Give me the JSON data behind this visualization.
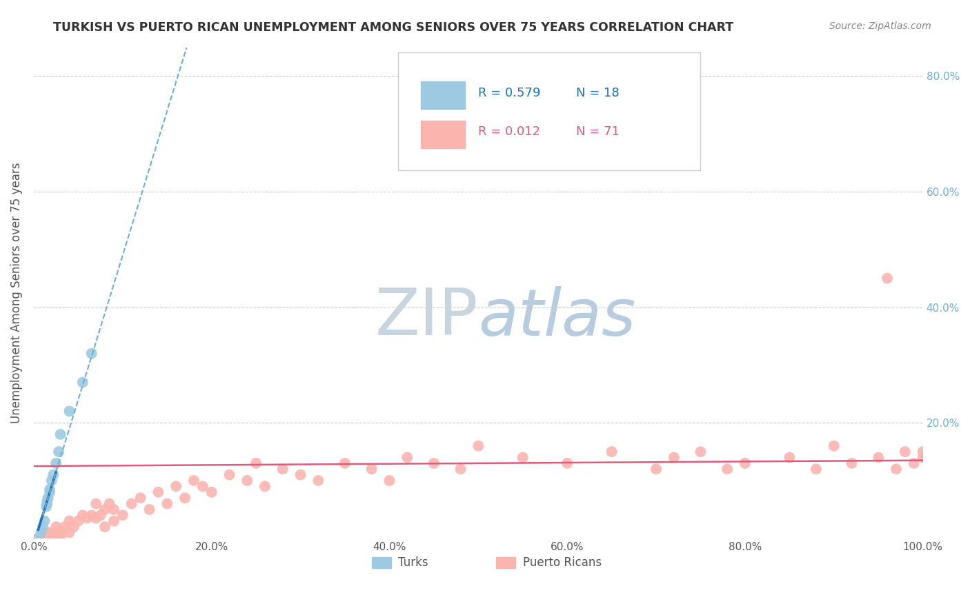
{
  "title": "TURKISH VS PUERTO RICAN UNEMPLOYMENT AMONG SENIORS OVER 75 YEARS CORRELATION CHART",
  "source": "Source: ZipAtlas.com",
  "ylabel": "Unemployment Among Seniors over 75 years",
  "turks_x": [
    0.005,
    0.008,
    0.01,
    0.012,
    0.014,
    0.015,
    0.015,
    0.016,
    0.018,
    0.018,
    0.02,
    0.022,
    0.025,
    0.028,
    0.03,
    0.04,
    0.055,
    0.065
  ],
  "turks_y": [
    0.0,
    0.01,
    0.02,
    0.03,
    0.055,
    0.06,
    0.065,
    0.07,
    0.08,
    0.085,
    0.1,
    0.11,
    0.13,
    0.15,
    0.18,
    0.22,
    0.27,
    0.32
  ],
  "pr_x": [
    0.005,
    0.008,
    0.01,
    0.012,
    0.015,
    0.018,
    0.02,
    0.025,
    0.025,
    0.03,
    0.03,
    0.035,
    0.04,
    0.04,
    0.045,
    0.05,
    0.055,
    0.06,
    0.065,
    0.07,
    0.07,
    0.075,
    0.08,
    0.08,
    0.085,
    0.09,
    0.09,
    0.1,
    0.11,
    0.12,
    0.13,
    0.14,
    0.15,
    0.16,
    0.17,
    0.18,
    0.19,
    0.2,
    0.22,
    0.24,
    0.25,
    0.26,
    0.28,
    0.3,
    0.32,
    0.35,
    0.38,
    0.4,
    0.42,
    0.45,
    0.48,
    0.5,
    0.55,
    0.6,
    0.65,
    0.7,
    0.72,
    0.75,
    0.78,
    0.8,
    0.85,
    0.88,
    0.9,
    0.92,
    0.95,
    0.96,
    0.97,
    0.98,
    0.99,
    1.0,
    1.0
  ],
  "pr_y": [
    0.0,
    0.0,
    0.01,
    0.0,
    0.01,
    0.01,
    0.0,
    0.01,
    0.02,
    0.005,
    0.01,
    0.02,
    0.01,
    0.03,
    0.02,
    0.03,
    0.04,
    0.035,
    0.04,
    0.035,
    0.06,
    0.04,
    0.05,
    0.02,
    0.06,
    0.05,
    0.03,
    0.04,
    0.06,
    0.07,
    0.05,
    0.08,
    0.06,
    0.09,
    0.07,
    0.1,
    0.09,
    0.08,
    0.11,
    0.1,
    0.13,
    0.09,
    0.12,
    0.11,
    0.1,
    0.13,
    0.12,
    0.1,
    0.14,
    0.13,
    0.12,
    0.16,
    0.14,
    0.13,
    0.15,
    0.12,
    0.14,
    0.15,
    0.12,
    0.13,
    0.14,
    0.12,
    0.16,
    0.13,
    0.14,
    0.45,
    0.12,
    0.15,
    0.13,
    0.15,
    0.14
  ],
  "turks_scatter_color": "#9ecae1",
  "pr_scatter_color": "#fbb4ae",
  "turks_line_color": "#2171b5",
  "turks_dash_color": "#6baed6",
  "pr_line_color": "#e05a7a",
  "turks_R": 0.579,
  "turks_N": 18,
  "pr_R": 0.012,
  "pr_N": 71,
  "xlim": [
    0.0,
    1.0
  ],
  "ylim": [
    0.0,
    0.85
  ],
  "xticks": [
    0.0,
    0.2,
    0.4,
    0.6,
    0.8,
    1.0
  ],
  "yticks": [
    0.0,
    0.2,
    0.4,
    0.6,
    0.8
  ],
  "xticklabels": [
    "0.0%",
    "20.0%",
    "40.0%",
    "60.0%",
    "80.0%",
    "100.0%"
  ],
  "right_yticklabels": [
    "",
    "20.0%",
    "40.0%",
    "60.0%",
    "80.0%"
  ],
  "background_color": "#ffffff",
  "grid_color": "#cccccc",
  "title_color": "#333333",
  "axis_label_color": "#555555",
  "tick_color": "#6baed6",
  "watermark_color": "#ccd8e8"
}
